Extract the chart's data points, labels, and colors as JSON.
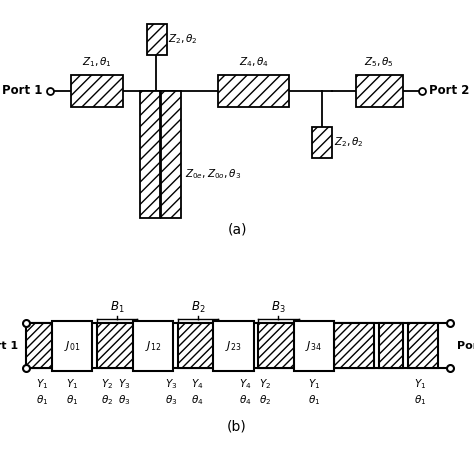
{
  "fig_width": 4.74,
  "fig_height": 4.51,
  "bg_color": "#ffffff",
  "hatch_pattern": "///",
  "label_a": "(a)",
  "label_b": "(b)"
}
